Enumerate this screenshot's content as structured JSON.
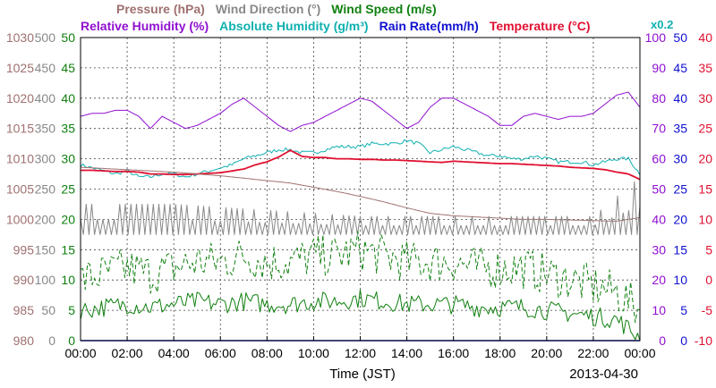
{
  "legend": {
    "row1": [
      {
        "text": "Pressure (hPa)",
        "color": "#a07070"
      },
      {
        "text": "Wind Direction (°)",
        "color": "#888888"
      },
      {
        "text": "Wind Speed (m/s)",
        "color": "#108010"
      }
    ],
    "row2": [
      {
        "text": "Relative Humidity (%)",
        "color": "#9010d0"
      },
      {
        "text": "Absolute Humidity (g/m³)",
        "color": "#10b0b0"
      },
      {
        "text": "Rain Rate(mm/h)",
        "color": "#1010d0"
      },
      {
        "text": "Temperature (°C)",
        "color": "#e01030"
      }
    ],
    "multiplier": {
      "text": "x0.2",
      "color": "#10b0b0"
    }
  },
  "xlabel": "Time (JST)",
  "date": "2013-04-30",
  "chart_data": {
    "type": "line",
    "x_ticks": [
      "00:00",
      "02:00",
      "04:00",
      "06:00",
      "08:00",
      "10:00",
      "12:00",
      "14:00",
      "16:00",
      "18:00",
      "20:00",
      "22:00",
      "00:00"
    ],
    "axes": {
      "pressure": {
        "ticks": [
          "1030",
          "1025",
          "1020",
          "1015",
          "1010",
          "1005",
          "1000",
          "995",
          "990",
          "985",
          "980"
        ],
        "range": [
          980,
          1030
        ],
        "color": "#a07070"
      },
      "wind_direction": {
        "ticks": [
          "500",
          "450",
          "400",
          "350",
          "300",
          "250",
          "200",
          "150",
          "100",
          "50",
          "0"
        ],
        "range": [
          0,
          500
        ],
        "color": "#888888"
      },
      "wind_speed": {
        "ticks": [
          "50",
          "45",
          "40",
          "35",
          "30",
          "25",
          "20",
          "15",
          "10",
          "5",
          "0"
        ],
        "range": [
          0,
          50
        ],
        "color": "#108010"
      },
      "humidity": {
        "ticks": [
          "100",
          "90",
          "80",
          "70",
          "60",
          "50",
          "40",
          "30",
          "20",
          "10",
          "0"
        ],
        "range": [
          0,
          100
        ],
        "color": "#9010d0"
      },
      "rain_rate": {
        "ticks": [
          "50",
          "45",
          "40",
          "35",
          "30",
          "25",
          "20",
          "15",
          "10",
          "5",
          "0"
        ],
        "range": [
          0,
          50
        ],
        "color": "#1010d0"
      },
      "temperature": {
        "ticks": [
          "40",
          "35",
          "30",
          "25",
          "20",
          "15",
          "10",
          "5",
          "0",
          "-5",
          "-10"
        ],
        "range": [
          -10,
          40
        ],
        "color": "#e01030"
      }
    },
    "series": [
      {
        "name": "Relative Humidity (%)",
        "color": "#9010d0",
        "axis": "humidity",
        "x": [
          0,
          0.5,
          1,
          1.5,
          2,
          2.5,
          3,
          3.5,
          4,
          4.5,
          5,
          5.5,
          6,
          6.5,
          7,
          7.5,
          8,
          8.5,
          9,
          9.5,
          10,
          10.5,
          11,
          11.5,
          12,
          12.5,
          13,
          13.5,
          14,
          14.5,
          15,
          15.5,
          16,
          16.5,
          17,
          17.5,
          18,
          18.5,
          19,
          19.5,
          20,
          20.5,
          21,
          21.5,
          22,
          22.5,
          23,
          23.5,
          24
        ],
        "values": [
          74,
          75,
          75,
          76,
          76,
          74,
          70,
          74,
          72,
          70,
          71,
          73,
          75,
          78,
          80,
          77,
          74,
          71,
          69,
          71,
          72,
          74,
          76,
          78,
          80,
          79,
          76,
          73,
          70,
          72,
          77,
          80,
          80,
          78,
          76,
          74,
          71,
          71,
          74,
          75,
          74,
          73,
          74,
          74,
          75,
          78,
          81,
          82,
          77
        ]
      },
      {
        "name": "Absolute Humidity (g/m³)",
        "color": "#10b0b0",
        "axis": "humidity",
        "x": [
          0,
          0.5,
          1,
          1.5,
          2,
          2.5,
          3,
          3.5,
          4,
          4.5,
          5,
          5.5,
          6,
          6.5,
          7,
          7.5,
          8,
          8.5,
          9,
          9.5,
          10,
          10.5,
          11,
          11.5,
          12,
          12.5,
          13,
          13.5,
          14,
          14.5,
          15,
          15.5,
          16,
          16.5,
          17,
          17.5,
          18,
          18.5,
          19,
          19.5,
          20,
          20.5,
          21,
          21.5,
          22,
          22.5,
          23,
          23.5,
          24
        ],
        "values": [
          58,
          57,
          56,
          55,
          56,
          54,
          54,
          55,
          55,
          54,
          55,
          56,
          57,
          58,
          60,
          61,
          62,
          63,
          63,
          62,
          62,
          63,
          64,
          64,
          64,
          65,
          65,
          65,
          66,
          65,
          62,
          63,
          64,
          63,
          62,
          61,
          61,
          60,
          60,
          61,
          60,
          59,
          59,
          59,
          58,
          59,
          60,
          60,
          55
        ]
      },
      {
        "name": "Temperature (°C)",
        "color": "#e01030",
        "axis": "temperature",
        "x": [
          0,
          0.5,
          1,
          1.5,
          2,
          2.5,
          3,
          3.5,
          4,
          4.5,
          5,
          5.5,
          6,
          6.5,
          7,
          7.5,
          8,
          8.5,
          9,
          9.5,
          10,
          10.5,
          11,
          11.5,
          12,
          12.5,
          13,
          13.5,
          14,
          14.5,
          15,
          15.5,
          16,
          16.5,
          17,
          17.5,
          18,
          18.5,
          19,
          19.5,
          20,
          20.5,
          21,
          21.5,
          22,
          22.5,
          23,
          23.5,
          24
        ],
        "values": [
          18.1,
          18.1,
          18,
          17.9,
          17.9,
          17.8,
          17.5,
          17.5,
          17.4,
          17.4,
          17.5,
          17.6,
          17.7,
          18,
          18.3,
          19,
          19.5,
          20.3,
          21.4,
          20.4,
          20.2,
          20.2,
          20,
          20,
          19.9,
          19.9,
          19.8,
          19.8,
          19.7,
          19.6,
          19.5,
          19.4,
          19.6,
          19.5,
          19.4,
          19.3,
          19.2,
          19.2,
          19.1,
          19,
          18.9,
          18.8,
          18.6,
          18.5,
          18.4,
          18.2,
          17.8,
          17.5,
          16.6
        ]
      },
      {
        "name": "Pressure (hPa)",
        "color": "#a07070",
        "axis": "pressure",
        "x": [
          0,
          1,
          2,
          3,
          4,
          5,
          6,
          7,
          8,
          9,
          10,
          11,
          12,
          13,
          14,
          15,
          16,
          17,
          18,
          19,
          20,
          21,
          22,
          23,
          24
        ],
        "values": [
          1008.6,
          1008.4,
          1008.2,
          1008,
          1007.8,
          1007.5,
          1007.2,
          1006.8,
          1006.4,
          1006,
          1005.3,
          1004.6,
          1003.8,
          1002.9,
          1001.9,
          1001,
          1000.6,
          1000.4,
          1000.2,
          1000,
          1000,
          999.9,
          999.8,
          999.7,
          1000.3
        ]
      },
      {
        "name": "Wind Direction (°)",
        "color": "#888888",
        "axis": "wind_direction",
        "style": "oscillating",
        "x": [
          0,
          2,
          4,
          6,
          8,
          10,
          12,
          14,
          16,
          18,
          20,
          22,
          24
        ],
        "min": [
          175,
          175,
          175,
          175,
          175,
          175,
          175,
          175,
          175,
          175,
          175,
          175,
          175
        ],
        "max": [
          225,
          225,
          225,
          220,
          215,
          210,
          205,
          205,
          205,
          205,
          205,
          205,
          270
        ]
      },
      {
        "name": "Wind Speed (m/s) max",
        "color": "#108010",
        "axis": "wind_speed",
        "style": "dashed",
        "x": [
          0,
          1,
          2,
          3,
          4,
          5,
          6,
          7,
          8,
          9,
          10,
          11,
          12,
          13,
          14,
          15,
          16,
          17,
          18,
          19,
          20,
          21,
          22,
          23,
          24
        ],
        "values": [
          10,
          11,
          12,
          11,
          12,
          13,
          13,
          14,
          13,
          13,
          14,
          14,
          15,
          14,
          13,
          13,
          13,
          12,
          12,
          12,
          11,
          10,
          9,
          8,
          5
        ]
      },
      {
        "name": "Wind Speed (m/s) avg",
        "color": "#108010",
        "axis": "wind_speed",
        "x": [
          0,
          1,
          2,
          3,
          4,
          5,
          6,
          7,
          8,
          9,
          10,
          11,
          12,
          13,
          14,
          15,
          16,
          17,
          18,
          19,
          20,
          21,
          22,
          23,
          24
        ],
        "values": [
          5,
          5.5,
          6,
          5.5,
          6,
          6.5,
          6,
          6.5,
          6,
          6,
          6.5,
          6.5,
          7,
          6.5,
          6,
          6,
          6,
          5.5,
          5.5,
          5.5,
          5,
          4.5,
          4,
          3.5,
          0.5
        ]
      },
      {
        "name": "Rain Rate(mm/h)",
        "color": "#1010d0",
        "axis": "rain_rate",
        "x": [
          0,
          24
        ],
        "values": [
          0,
          0
        ]
      }
    ]
  }
}
